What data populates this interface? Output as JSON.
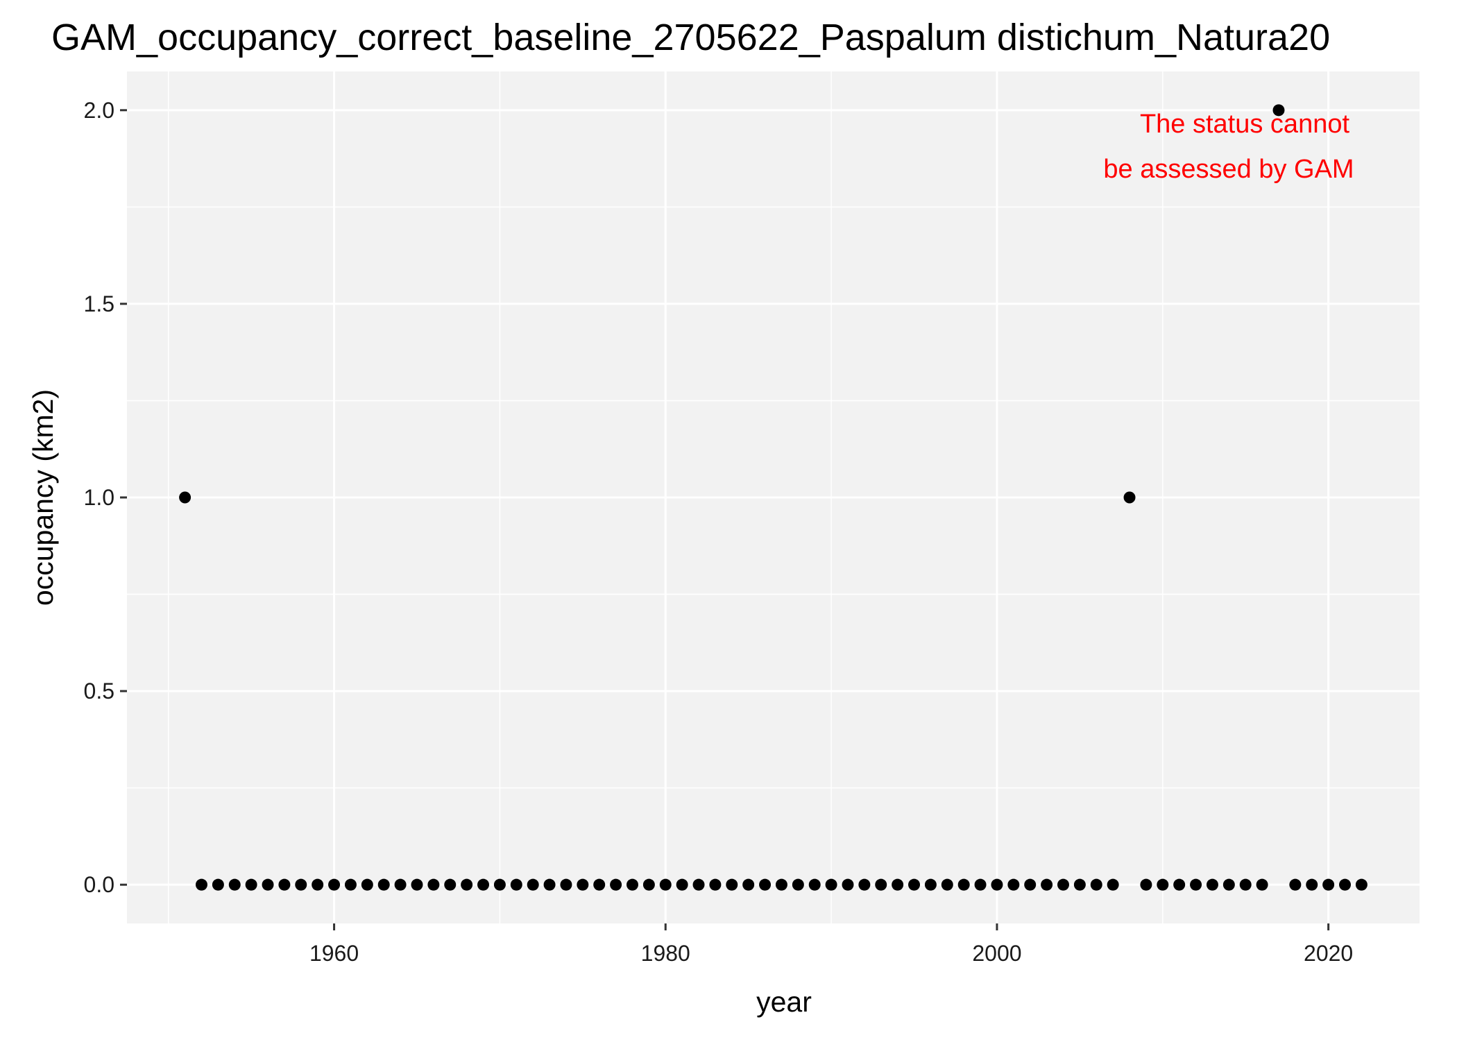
{
  "chart_data": {
    "type": "scatter",
    "title": "GAM_occupancy_correct_baseline_2705622_Paspalum distichum_Natura20",
    "xlabel": "year",
    "ylabel": "occupancy (km2)",
    "xlim": [
      1947.5,
      2025.5
    ],
    "ylim": [
      -0.1,
      2.1
    ],
    "x_ticks": [
      1960,
      1980,
      2000,
      2020
    ],
    "x_minor": [
      1950,
      1970,
      1990,
      2010
    ],
    "y_ticks": [
      0.0,
      0.5,
      1.0,
      1.5,
      2.0
    ],
    "y_tick_labels": [
      "0.0",
      "0.5",
      "1.0",
      "1.5",
      "2.0"
    ],
    "y_minor": [
      0.25,
      0.75,
      1.25,
      1.75
    ],
    "series": [
      {
        "name": "occupancy",
        "x": [
          1951,
          1952,
          1953,
          1954,
          1955,
          1956,
          1957,
          1958,
          1959,
          1960,
          1961,
          1962,
          1963,
          1964,
          1965,
          1966,
          1967,
          1968,
          1969,
          1970,
          1971,
          1972,
          1973,
          1974,
          1975,
          1976,
          1977,
          1978,
          1979,
          1980,
          1981,
          1982,
          1983,
          1984,
          1985,
          1986,
          1987,
          1988,
          1989,
          1990,
          1991,
          1992,
          1993,
          1994,
          1995,
          1996,
          1997,
          1998,
          1999,
          2000,
          2001,
          2002,
          2003,
          2004,
          2005,
          2006,
          2007,
          2008,
          2009,
          2010,
          2011,
          2012,
          2013,
          2014,
          2015,
          2016,
          2017,
          2018,
          2019,
          2020,
          2021,
          2022
        ],
        "y": [
          1,
          0,
          0,
          0,
          0,
          0,
          0,
          0,
          0,
          0,
          0,
          0,
          0,
          0,
          0,
          0,
          0,
          0,
          0,
          0,
          0,
          0,
          0,
          0,
          0,
          0,
          0,
          0,
          0,
          0,
          0,
          0,
          0,
          0,
          0,
          0,
          0,
          0,
          0,
          0,
          0,
          0,
          0,
          0,
          0,
          0,
          0,
          0,
          0,
          0,
          0,
          0,
          0,
          0,
          0,
          0,
          0,
          1,
          0,
          0,
          0,
          0,
          0,
          0,
          0,
          0,
          2,
          0,
          0,
          0,
          0,
          0
        ]
      }
    ],
    "annotation": {
      "lines": [
        "The status cannot",
        "be assessed by GAM"
      ],
      "color": "#ff0000"
    },
    "colors": {
      "panel": "#f2f2f2",
      "grid": "#ffffff",
      "point": "#000000"
    }
  }
}
